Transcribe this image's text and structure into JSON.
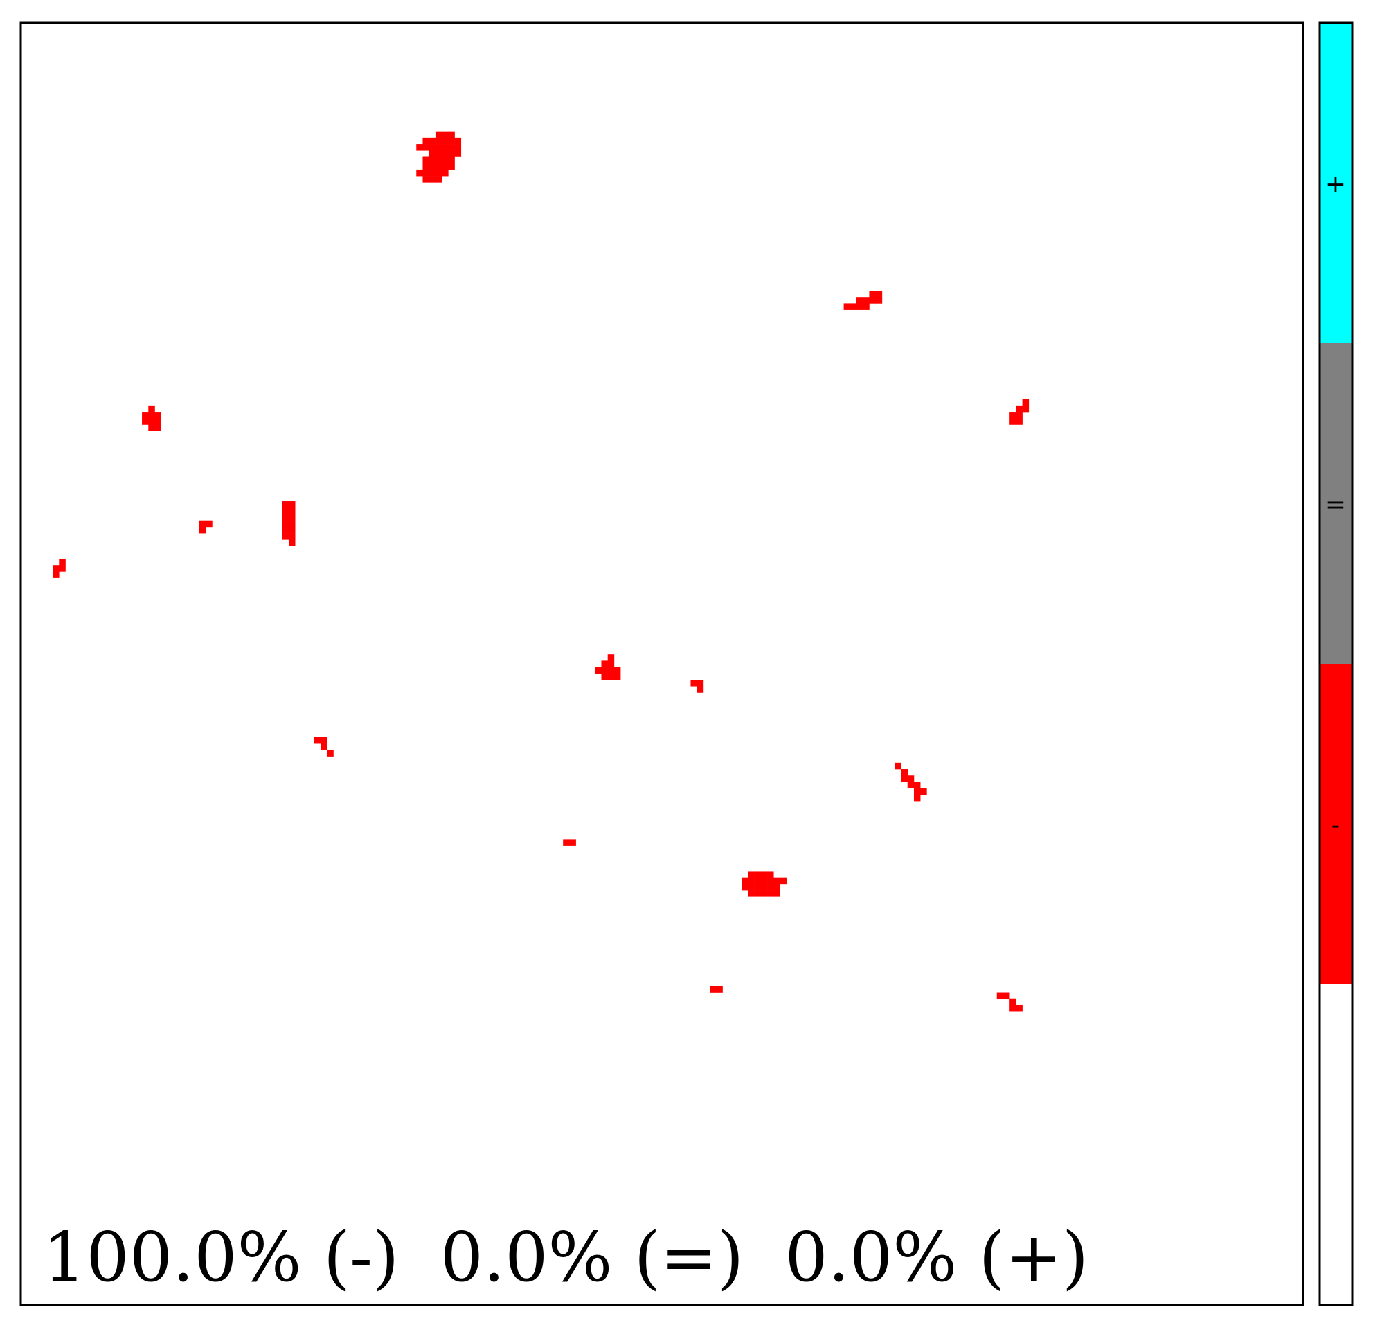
{
  "chart_data": {
    "type": "heatmap",
    "title": "",
    "xlabel": "",
    "ylabel": "",
    "grid": false,
    "colors": {
      "minus": "#ff0000",
      "equal": "#808080",
      "plus": "#00ffff",
      "background": "#ffffff"
    },
    "summary": {
      "minus_label": "100.0% (-)",
      "equal_label": "0.0% (=)",
      "plus_label": "0.0% (+)"
    },
    "colorbar": {
      "labels": [
        "+",
        "=",
        "-"
      ],
      "colors": [
        "#00ffff",
        "#808080",
        "#ff0000",
        "#ffffff"
      ]
    },
    "grid_size": 201,
    "cells_minus": [
      [
        65,
        17
      ],
      [
        66,
        17
      ],
      [
        67,
        17
      ],
      [
        63,
        18
      ],
      [
        64,
        18
      ],
      [
        65,
        18
      ],
      [
        66,
        18
      ],
      [
        67,
        18
      ],
      [
        68,
        18
      ],
      [
        62,
        19
      ],
      [
        63,
        19
      ],
      [
        64,
        19
      ],
      [
        65,
        19
      ],
      [
        66,
        19
      ],
      [
        67,
        19
      ],
      [
        68,
        19
      ],
      [
        64,
        20
      ],
      [
        65,
        20
      ],
      [
        66,
        20
      ],
      [
        67,
        20
      ],
      [
        68,
        20
      ],
      [
        63,
        21
      ],
      [
        64,
        21
      ],
      [
        65,
        21
      ],
      [
        66,
        21
      ],
      [
        67,
        21
      ],
      [
        63,
        22
      ],
      [
        64,
        22
      ],
      [
        65,
        22
      ],
      [
        66,
        22
      ],
      [
        67,
        22
      ],
      [
        62,
        23
      ],
      [
        63,
        23
      ],
      [
        64,
        23
      ],
      [
        65,
        23
      ],
      [
        66,
        23
      ],
      [
        63,
        24
      ],
      [
        64,
        24
      ],
      [
        65,
        24
      ],
      [
        133,
        42
      ],
      [
        134,
        42
      ],
      [
        131,
        43
      ],
      [
        132,
        43
      ],
      [
        133,
        43
      ],
      [
        134,
        43
      ],
      [
        129,
        44
      ],
      [
        130,
        44
      ],
      [
        131,
        44
      ],
      [
        132,
        44
      ],
      [
        157,
        59
      ],
      [
        156,
        60
      ],
      [
        157,
        60
      ],
      [
        155,
        61
      ],
      [
        156,
        61
      ],
      [
        155,
        62
      ],
      [
        156,
        62
      ],
      [
        20,
        60
      ],
      [
        19,
        61
      ],
      [
        20,
        61
      ],
      [
        21,
        61
      ],
      [
        19,
        62
      ],
      [
        20,
        62
      ],
      [
        21,
        62
      ],
      [
        20,
        63
      ],
      [
        21,
        63
      ],
      [
        41,
        75
      ],
      [
        42,
        75
      ],
      [
        41,
        76
      ],
      [
        42,
        76
      ],
      [
        41,
        77
      ],
      [
        42,
        77
      ],
      [
        41,
        78
      ],
      [
        42,
        78
      ],
      [
        41,
        79
      ],
      [
        42,
        79
      ],
      [
        41,
        80
      ],
      [
        42,
        80
      ],
      [
        42,
        81
      ],
      [
        28,
        78
      ],
      [
        29,
        78
      ],
      [
        28,
        79
      ],
      [
        6,
        84
      ],
      [
        5,
        85
      ],
      [
        6,
        85
      ],
      [
        5,
        86
      ],
      [
        92,
        99
      ],
      [
        91,
        100
      ],
      [
        92,
        100
      ],
      [
        90,
        101
      ],
      [
        91,
        101
      ],
      [
        92,
        101
      ],
      [
        93,
        101
      ],
      [
        91,
        102
      ],
      [
        92,
        102
      ],
      [
        93,
        102
      ],
      [
        105,
        103
      ],
      [
        106,
        103
      ],
      [
        106,
        104
      ],
      [
        46,
        112
      ],
      [
        47,
        112
      ],
      [
        47,
        113
      ],
      [
        48,
        114
      ],
      [
        137,
        116
      ],
      [
        138,
        117
      ],
      [
        138,
        118
      ],
      [
        139,
        118
      ],
      [
        139,
        119
      ],
      [
        140,
        119
      ],
      [
        140,
        120
      ],
      [
        141,
        120
      ],
      [
        140,
        121
      ],
      [
        85,
        128
      ],
      [
        86,
        128
      ],
      [
        114,
        133
      ],
      [
        115,
        133
      ],
      [
        116,
        133
      ],
      [
        117,
        133
      ],
      [
        113,
        134
      ],
      [
        114,
        134
      ],
      [
        115,
        134
      ],
      [
        116,
        134
      ],
      [
        117,
        134
      ],
      [
        118,
        134
      ],
      [
        119,
        134
      ],
      [
        113,
        135
      ],
      [
        114,
        135
      ],
      [
        115,
        135
      ],
      [
        116,
        135
      ],
      [
        117,
        135
      ],
      [
        118,
        135
      ],
      [
        114,
        136
      ],
      [
        115,
        136
      ],
      [
        116,
        136
      ],
      [
        117,
        136
      ],
      [
        118,
        136
      ],
      [
        108,
        151
      ],
      [
        109,
        151
      ],
      [
        153,
        152
      ],
      [
        154,
        152
      ],
      [
        155,
        153
      ],
      [
        155,
        154
      ],
      [
        156,
        154
      ]
    ]
  }
}
